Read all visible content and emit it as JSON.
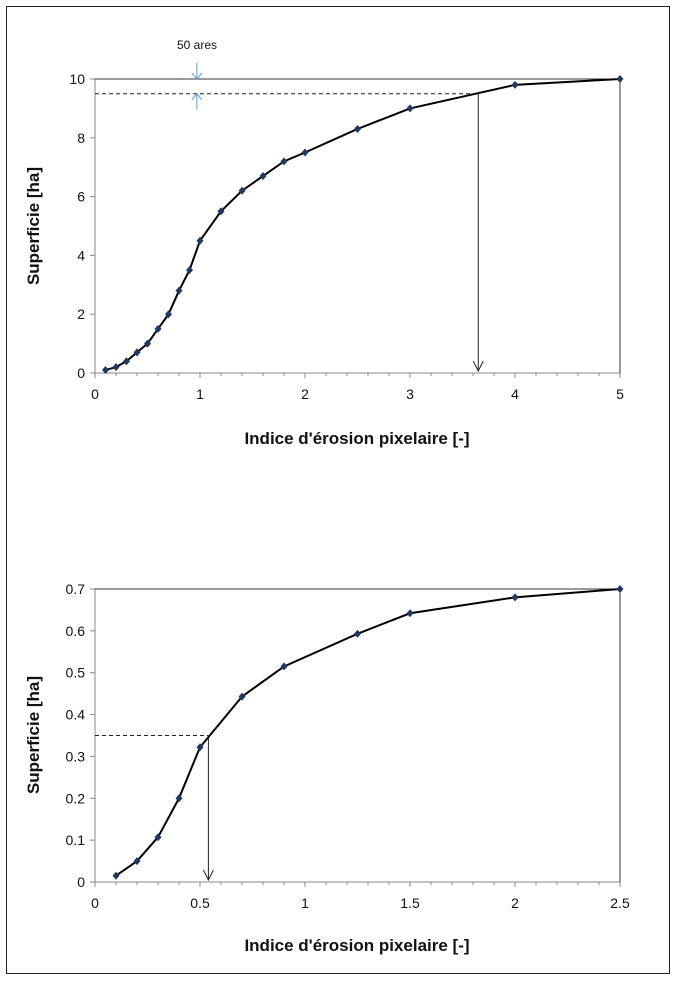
{
  "chart_data": [
    {
      "type": "line",
      "xlabel": "Indice d'érosion pixelaire [-]",
      "ylabel": "Superficie [ha]",
      "xlim": [
        0,
        5
      ],
      "ylim": [
        0,
        10
      ],
      "x_ticks": [
        "0",
        "1",
        "2",
        "3",
        "4",
        "5"
      ],
      "y_ticks": [
        "0",
        "2",
        "4",
        "6",
        "8",
        "10"
      ],
      "grid": false,
      "series": [
        {
          "color": "#000000",
          "marker_color": "#1f3864",
          "x": [
            0.1,
            0.2,
            0.3,
            0.4,
            0.5,
            0.6,
            0.7,
            0.8,
            0.9,
            1.0,
            1.2,
            1.4,
            1.6,
            1.8,
            2.0,
            2.5,
            3.0,
            4.0,
            5.0
          ],
          "y": [
            0.1,
            0.2,
            0.4,
            0.7,
            1.0,
            1.5,
            2.0,
            2.8,
            3.5,
            4.5,
            5.5,
            6.2,
            6.7,
            7.2,
            7.5,
            8.3,
            9.0,
            9.8,
            10.0
          ]
        }
      ],
      "max_line": {
        "y": 10
      },
      "threshold": {
        "y": 9.5,
        "x": 3.65
      },
      "annotation": {
        "text": "50 ares",
        "x": 0.97,
        "y_from": 9.5,
        "y_to": 10
      }
    },
    {
      "type": "line",
      "xlabel": "Indice d'érosion pixelaire [-]",
      "ylabel": "Superficie [ha]",
      "xlim": [
        0,
        2.5
      ],
      "ylim": [
        0,
        0.7
      ],
      "x_ticks": [
        "0",
        "0.5",
        "1",
        "1.5",
        "2",
        "2.5"
      ],
      "y_ticks": [
        "0",
        "0.1",
        "0.2",
        "0.3",
        "0.4",
        "0.5",
        "0.6",
        "0.7"
      ],
      "grid": false,
      "series": [
        {
          "color": "#000000",
          "marker_color": "#1f3864",
          "x": [
            0.1,
            0.2,
            0.3,
            0.4,
            0.5,
            0.7,
            0.9,
            1.25,
            1.5,
            2.0,
            2.5
          ],
          "y": [
            0.015,
            0.05,
            0.107,
            0.2,
            0.322,
            0.443,
            0.515,
            0.593,
            0.642,
            0.68,
            0.7
          ]
        }
      ],
      "max_line": {
        "y": 0.7
      },
      "threshold": {
        "y": 0.35,
        "x": 0.54
      }
    }
  ]
}
